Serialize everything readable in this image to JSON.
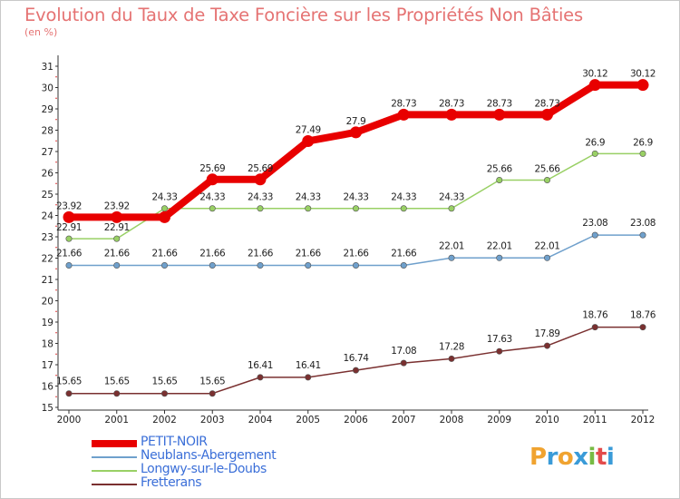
{
  "header": {
    "title": "Evolution du Taux de Taxe Foncière sur les Propriétés Non Bâties",
    "unit": "(en %)"
  },
  "logo": {
    "letters": [
      "P",
      "r",
      "o",
      "x",
      "i",
      "t",
      "i"
    ],
    "colors": [
      "#f0a330",
      "#3a9bd8",
      "#f0a330",
      "#3a9bd8",
      "#77bb44",
      "#e34b4b",
      "#3a9bd8"
    ]
  },
  "chart_data": {
    "type": "line",
    "title": "Evolution du Taux de Taxe Foncière sur les Propriétés Non Bâties",
    "ylabel": "(en %)",
    "xlabel": "",
    "x": [
      "2000",
      "2001",
      "2002",
      "2003",
      "2004",
      "2005",
      "2006",
      "2007",
      "2008",
      "2009",
      "2010",
      "2011",
      "2012"
    ],
    "ylim": [
      15,
      31
    ],
    "yticks": [
      "15",
      "16",
      "17",
      "18",
      "19",
      "20",
      "21",
      "22",
      "23",
      "24",
      "25",
      "26",
      "27",
      "28",
      "29",
      "30",
      "31"
    ],
    "grid": false,
    "series": [
      {
        "name": "PETIT-NOIR",
        "color": "#e80000",
        "values": [
          23.92,
          23.92,
          23.92,
          25.69,
          25.69,
          27.49,
          27.9,
          28.73,
          28.73,
          28.73,
          28.73,
          30.12,
          30.12
        ],
        "labels": [
          "23.92",
          "23.92",
          "",
          "25.69",
          "25.69",
          "27.49",
          "27.9",
          "28.73",
          "28.73",
          "28.73",
          "28.73",
          "30.12",
          "30.12"
        ]
      },
      {
        "name": "Neublans-Abergement",
        "color": "#6fa0cc",
        "values": [
          21.66,
          21.66,
          21.66,
          21.66,
          21.66,
          21.66,
          21.66,
          21.66,
          22.01,
          22.01,
          22.01,
          23.08,
          23.08
        ],
        "labels": [
          "21.66",
          "21.66",
          "21.66",
          "21.66",
          "21.66",
          "21.66",
          "21.66",
          "21.66",
          "22.01",
          "22.01",
          "22.01",
          "23.08",
          "23.08"
        ]
      },
      {
        "name": "Longwy-sur-le-Doubs",
        "color": "#99d065",
        "values": [
          22.91,
          22.91,
          24.33,
          24.33,
          24.33,
          24.33,
          24.33,
          24.33,
          24.33,
          25.66,
          25.66,
          26.9,
          26.9
        ],
        "labels": [
          "22.91",
          "22.91",
          "24.33",
          "24.33",
          "24.33",
          "24.33",
          "24.33",
          "24.33",
          "24.33",
          "25.66",
          "25.66",
          "26.9",
          "26.9"
        ]
      },
      {
        "name": "Fretterans",
        "color": "#7a3030",
        "values": [
          15.65,
          15.65,
          15.65,
          15.65,
          16.41,
          16.41,
          16.74,
          17.08,
          17.28,
          17.63,
          17.89,
          18.76,
          18.76
        ],
        "labels": [
          "15.65",
          "15.65",
          "15.65",
          "15.65",
          "16.41",
          "16.41",
          "16.74",
          "17.08",
          "17.28",
          "17.63",
          "17.89",
          "18.76",
          "18.76"
        ]
      }
    ],
    "legend_position": "bottom-left"
  }
}
